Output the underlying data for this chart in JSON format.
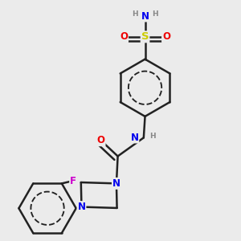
{
  "bg_color": "#ebebeb",
  "bond_color": "#222222",
  "bond_width": 1.8,
  "atom_colors": {
    "N": "#0000ee",
    "O": "#ee0000",
    "S": "#cccc00",
    "F": "#cc00cc",
    "H": "#888888",
    "C": "#222222"
  },
  "font_size_atom": 8.5,
  "font_size_h": 6.5,
  "r_hex": 0.105,
  "figsize": [
    3.0,
    3.0
  ],
  "dpi": 100
}
